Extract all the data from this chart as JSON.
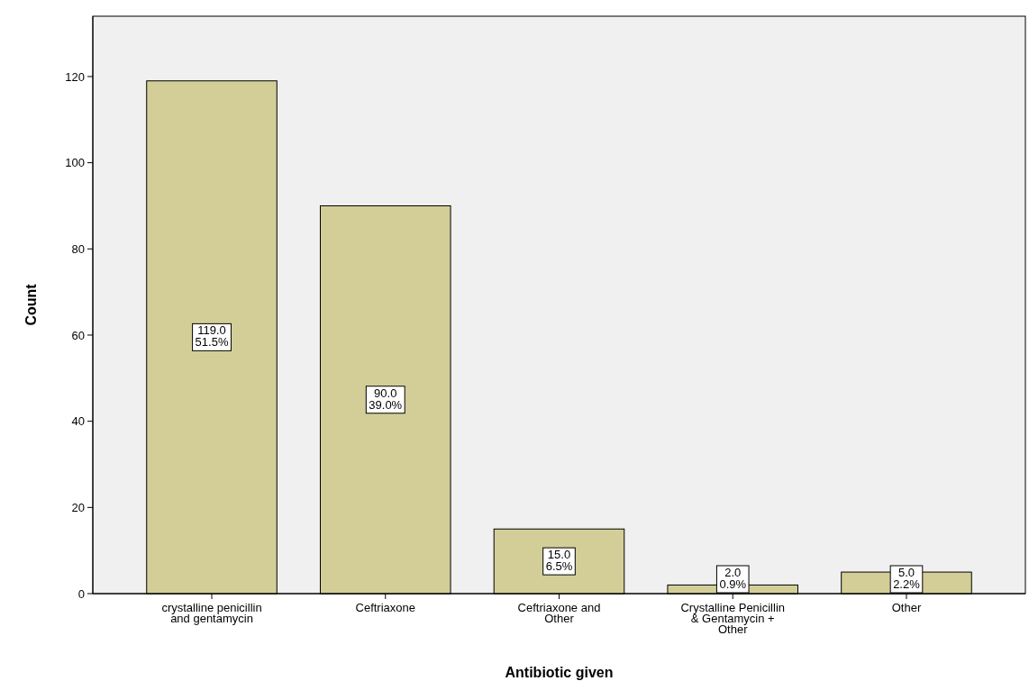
{
  "chart_data": {
    "type": "bar",
    "xlabel": "Antibiotic given",
    "ylabel": "Count",
    "categories": [
      "crystalline penicillin and gentamycin",
      "Ceftriaxone",
      "Ceftriaxone and Other",
      "Crystalline Penicillin & Gentamycin + Other",
      "Other"
    ],
    "values": [
      119,
      90,
      15,
      2,
      5
    ],
    "value_labels": [
      "119.0\n51.5%",
      "90.0\n39.0%",
      "15.0\n6.5%",
      "2.0\n0.9%",
      "5.0\n2.2%"
    ],
    "color": "#d3ce97",
    "ylim": [
      0,
      134
    ],
    "yticks": [
      0,
      20,
      40,
      60,
      80,
      100,
      120
    ],
    "grid": false
  }
}
